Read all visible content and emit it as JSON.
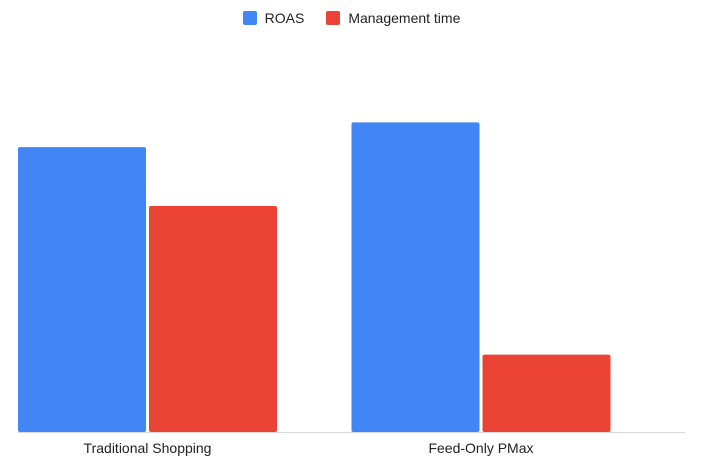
{
  "chart_data": {
    "type": "bar",
    "categories": [
      "Traditional Shopping",
      "Feed-Only PMax"
    ],
    "series": [
      {
        "name": "ROAS",
        "color": "#4285F4",
        "values": [
          92,
          100
        ]
      },
      {
        "name": "Management time",
        "color": "#EA4335",
        "values": [
          73,
          25
        ]
      }
    ],
    "ylim": [
      0,
      135
    ],
    "grid": false,
    "legend_position": "top-center"
  }
}
